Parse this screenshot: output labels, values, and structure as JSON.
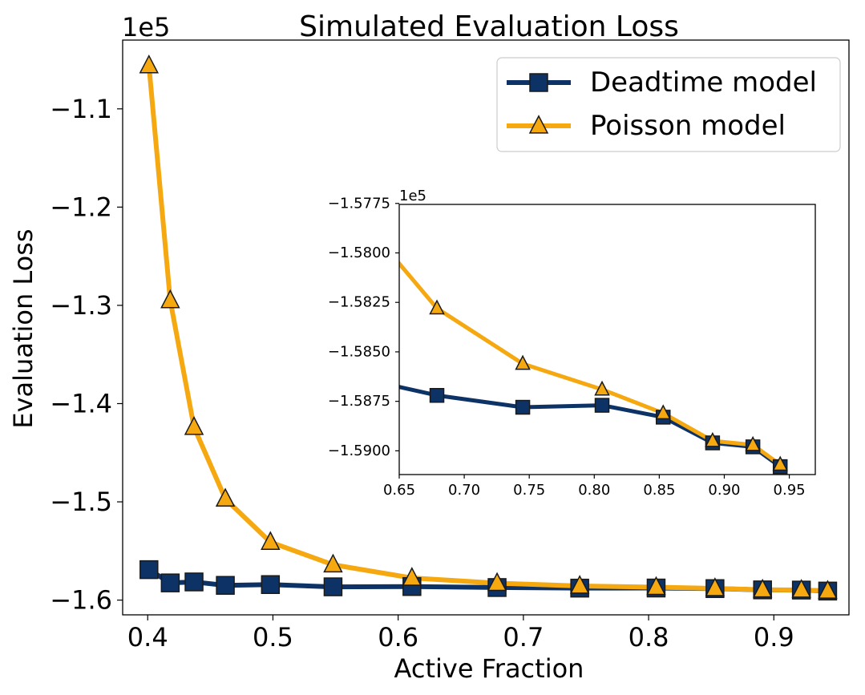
{
  "chart_data": {
    "type": "line",
    "title": "Simulated Evaluation Loss",
    "xlabel": "Active Fraction",
    "ylabel": "Evaluation Loss",
    "y_offset_label": "1e5",
    "xlim": [
      0.38,
      0.96
    ],
    "ylim": [
      -1.615,
      -1.03
    ],
    "xticks": [
      0.4,
      0.5,
      0.6,
      0.7,
      0.8,
      0.9
    ],
    "xtick_labels": [
      "0.4",
      "0.5",
      "0.6",
      "0.7",
      "0.8",
      "0.9"
    ],
    "yticks": [
      -1.1,
      -1.2,
      -1.3,
      -1.4,
      -1.5,
      -1.6
    ],
    "ytick_labels": [
      "−1.1",
      "−1.2",
      "−1.3",
      "−1.4",
      "−1.5",
      "−1.6"
    ],
    "legend": {
      "placement": "upper right",
      "entries": [
        "Deadtime model",
        "Poisson model"
      ]
    },
    "colors": {
      "deadtime": "#0d3366",
      "poisson": "#f5a810",
      "edge": "#1a1a1a"
    },
    "series": [
      {
        "name": "Deadtime model",
        "marker": "square",
        "x": [
          0.401,
          0.418,
          0.437,
          0.462,
          0.498,
          0.548,
          0.611,
          0.679,
          0.745,
          0.806,
          0.853,
          0.891,
          0.922,
          0.943
        ],
        "y": [
          -1.569,
          -1.5825,
          -1.5815,
          -1.585,
          -1.5842,
          -1.5865,
          -1.5862,
          -1.5872,
          -1.5878,
          -1.5877,
          -1.5883,
          -1.5896,
          -1.5898,
          -1.5908
        ]
      },
      {
        "name": "Poisson model",
        "marker": "triangle",
        "x": [
          0.401,
          0.418,
          0.437,
          0.462,
          0.498,
          0.548,
          0.611,
          0.679,
          0.745,
          0.806,
          0.853,
          0.891,
          0.922,
          0.943
        ],
        "y": [
          -1.056,
          -1.295,
          -1.424,
          -1.497,
          -1.541,
          -1.564,
          -1.5775,
          -1.5828,
          -1.5856,
          -1.5869,
          -1.5881,
          -1.5895,
          -1.5897,
          -1.5907
        ]
      }
    ],
    "inset": {
      "y_offset_label": "1e5",
      "xlim": [
        0.65,
        0.97
      ],
      "ylim": [
        -1.5912,
        -1.57755
      ],
      "xticks": [
        0.65,
        0.7,
        0.75,
        0.8,
        0.85,
        0.9,
        0.95
      ],
      "xtick_labels": [
        "0.65",
        "0.70",
        "0.75",
        "0.80",
        "0.85",
        "0.90",
        "0.95"
      ],
      "yticks": [
        -1.5775,
        -1.58,
        -1.5825,
        -1.585,
        -1.5875,
        -1.59
      ],
      "ytick_labels": [
        "−1.5775",
        "−1.5800",
        "−1.5825",
        "−1.5850",
        "−1.5875",
        "−1.5900"
      ]
    }
  }
}
